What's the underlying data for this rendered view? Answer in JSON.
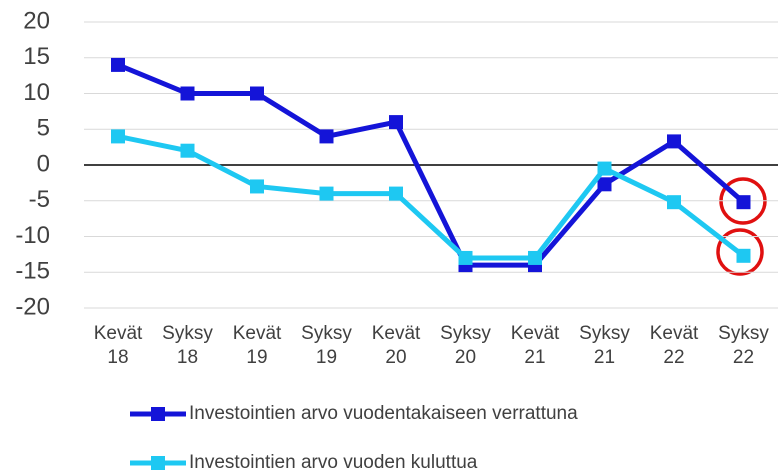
{
  "chart_data": {
    "type": "line",
    "categories": [
      "Kevät 18",
      "Syksy 18",
      "Kevät 19",
      "Syksy 19",
      "Kevät 20",
      "Syksy 20",
      "Kevät 21",
      "Syksy 21",
      "Kevät 22",
      "Syksy 22"
    ],
    "series": [
      {
        "name": "Investointien arvo vuodentakaiseen verrattuna",
        "color": "#1414d8",
        "values": [
          14,
          10,
          10,
          4,
          6,
          -14,
          -14,
          -2.7,
          3.3,
          -5.2
        ]
      },
      {
        "name": "Investointien arvo vuoden kuluttua",
        "color": "#1ec8f2",
        "values": [
          4,
          2,
          -3,
          -4,
          -4,
          -13,
          -13,
          -0.5,
          -5.2,
          -12.7
        ]
      }
    ],
    "ylim": [
      -20,
      20
    ],
    "yticks": [
      20,
      15,
      10,
      5,
      0,
      -5,
      -10,
      -15,
      -20
    ],
    "grid": true
  }
}
